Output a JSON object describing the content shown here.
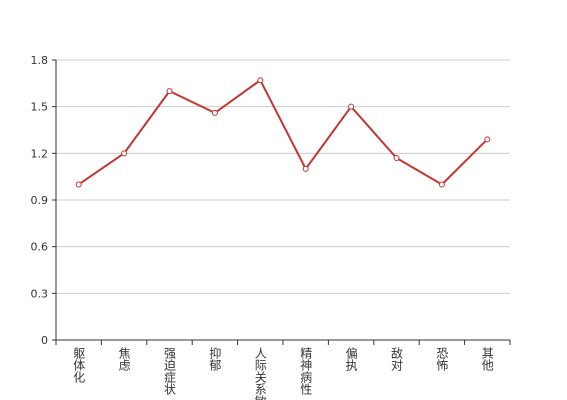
{
  "chart_data": {
    "type": "line",
    "categories": [
      "躯体化",
      "焦虑",
      "强迫症状",
      "抑郁",
      "人际关系敏感",
      "精神病性",
      "偏执",
      "敌对",
      "恐怖",
      "其他"
    ],
    "values": [
      1.0,
      1.2,
      1.6,
      1.46,
      1.67,
      1.1,
      1.5,
      1.17,
      1.0,
      1.29
    ],
    "color": "#c23531",
    "ylim": [
      0,
      1.8
    ],
    "yticks": [
      0,
      0.3,
      0.6,
      0.9,
      1.2,
      1.5,
      1.8
    ],
    "grid": true
  }
}
